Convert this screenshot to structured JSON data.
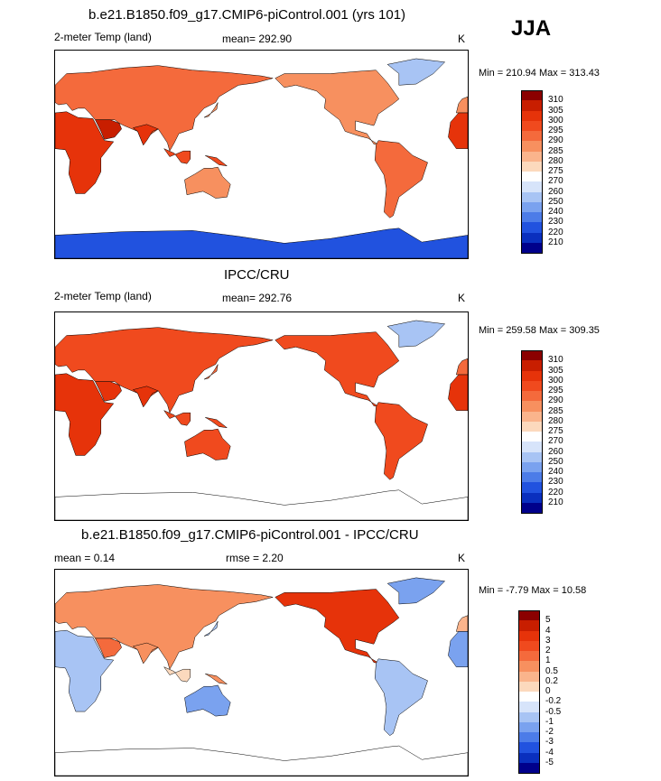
{
  "season": "JJA",
  "panels": [
    {
      "id": "model",
      "title": "b.e21.B1850.f09_g17.CMIP6-piControl.001 (yrs 101)",
      "left_label": "2-meter Temp (land)",
      "center_label": "mean= 292.90",
      "right_label": "K",
      "minmax": "Min = 210.94 Max = 313.43",
      "colorbar": {
        "levels": [
          "310",
          "305",
          "300",
          "295",
          "290",
          "285",
          "280",
          "275",
          "270",
          "260",
          "250",
          "240",
          "230",
          "220",
          "210"
        ],
        "colors": [
          "#8b0000",
          "#c81e00",
          "#e6330a",
          "#f04a1e",
          "#f46a3c",
          "#f7905f",
          "#fab48c",
          "#fcd9bd",
          "#ffffff",
          "#d7e4fa",
          "#a8c4f4",
          "#7aa2ef",
          "#4c7ce8",
          "#2152df",
          "#0a2fbe",
          "#00008b"
        ]
      }
    },
    {
      "id": "obs",
      "title": "IPCC/CRU",
      "left_label": "2-meter Temp (land)",
      "center_label": "mean= 292.76",
      "right_label": "K",
      "minmax": "Min = 259.58 Max = 309.35",
      "colorbar": {
        "levels": [
          "310",
          "305",
          "300",
          "295",
          "290",
          "285",
          "280",
          "275",
          "270",
          "260",
          "250",
          "240",
          "230",
          "220",
          "210"
        ],
        "colors": [
          "#8b0000",
          "#c81e00",
          "#e6330a",
          "#f04a1e",
          "#f46a3c",
          "#f7905f",
          "#fab48c",
          "#fcd9bd",
          "#ffffff",
          "#d7e4fa",
          "#a8c4f4",
          "#7aa2ef",
          "#4c7ce8",
          "#2152df",
          "#0a2fbe",
          "#00008b"
        ]
      }
    },
    {
      "id": "diff",
      "title": "b.e21.B1850.f09_g17.CMIP6-piControl.001 - IPCC/CRU",
      "left_label": "mean =   0.14",
      "center_label": "rmse =    2.20",
      "right_label": "K",
      "minmax": "Min =  -7.79 Max =  10.58",
      "colorbar": {
        "levels": [
          "5",
          "4",
          "3",
          "2",
          "1",
          "0.5",
          "0.2",
          "0",
          "-0.2",
          "-0.5",
          "-1",
          "-2",
          "-3",
          "-4",
          "-5"
        ],
        "colors": [
          "#8b0000",
          "#c81e00",
          "#e6330a",
          "#f04a1e",
          "#f46a3c",
          "#f7905f",
          "#fab48c",
          "#fcd9bd",
          "#ffffff",
          "#d7e4fa",
          "#a8c4f4",
          "#7aa2ef",
          "#4c7ce8",
          "#2152df",
          "#0a2fbe",
          "#00008b"
        ]
      }
    }
  ],
  "chart_data": [
    {
      "type": "heatmap",
      "title": "b.e21.B1850.f09_g17.CMIP6-piControl.001 (yrs 101)",
      "variable": "2-meter Temp (land)",
      "mean": 292.9,
      "units": "K",
      "min": 210.94,
      "max": 313.43,
      "contour_levels": [
        210,
        220,
        230,
        240,
        250,
        260,
        270,
        275,
        280,
        285,
        290,
        295,
        300,
        305,
        310
      ]
    },
    {
      "type": "heatmap",
      "title": "IPCC/CRU",
      "variable": "2-meter Temp (land)",
      "mean": 292.76,
      "units": "K",
      "min": 259.58,
      "max": 309.35,
      "contour_levels": [
        210,
        220,
        230,
        240,
        250,
        260,
        270,
        275,
        280,
        285,
        290,
        295,
        300,
        305,
        310
      ]
    },
    {
      "type": "heatmap",
      "title": "b.e21.B1850.f09_g17.CMIP6-piControl.001 - IPCC/CRU",
      "mean": 0.14,
      "rmse": 2.2,
      "units": "K",
      "min": -7.79,
      "max": 10.58,
      "contour_levels": [
        -5,
        -4,
        -3,
        -2,
        -1,
        -0.5,
        -0.2,
        0,
        0.2,
        0.5,
        1,
        2,
        3,
        4,
        5
      ]
    }
  ]
}
